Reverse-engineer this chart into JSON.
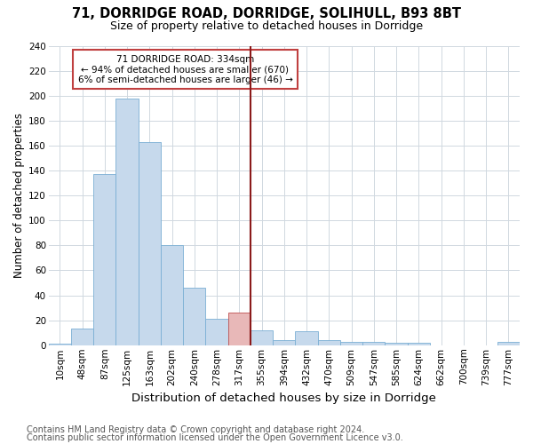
{
  "title1": "71, DORRIDGE ROAD, DORRIDGE, SOLIHULL, B93 8BT",
  "title2": "Size of property relative to detached houses in Dorridge",
  "xlabel": "Distribution of detached houses by size in Dorridge",
  "ylabel": "Number of detached properties",
  "categories": [
    "10sqm",
    "48sqm",
    "87sqm",
    "125sqm",
    "163sqm",
    "202sqm",
    "240sqm",
    "278sqm",
    "317sqm",
    "355sqm",
    "394sqm",
    "432sqm",
    "470sqm",
    "509sqm",
    "547sqm",
    "585sqm",
    "624sqm",
    "662sqm",
    "700sqm",
    "739sqm",
    "777sqm"
  ],
  "values": [
    1,
    13,
    137,
    198,
    163,
    80,
    46,
    21,
    26,
    12,
    4,
    11,
    4,
    3,
    3,
    2,
    2,
    0,
    0,
    0,
    3
  ],
  "bar_color": "#c6d9ec",
  "bar_edge_color": "#7aafd4",
  "highlight_bar_index": 8,
  "highlight_bar_color": "#e8b8b8",
  "highlight_bar_edge_color": "#c05050",
  "annotation_line1": "71 DORRIDGE ROAD: 334sqm",
  "annotation_line2": "← 94% of detached houses are smaller (670)",
  "annotation_line3": "6% of semi-detached houses are larger (46) →",
  "annotation_box_facecolor": "#ffffff",
  "annotation_box_edgecolor": "#c04040",
  "vline_color": "#8b1a1a",
  "ylim": [
    0,
    240
  ],
  "yticks": [
    0,
    20,
    40,
    60,
    80,
    100,
    120,
    140,
    160,
    180,
    200,
    220,
    240
  ],
  "footnote1": "Contains HM Land Registry data © Crown copyright and database right 2024.",
  "footnote2": "Contains public sector information licensed under the Open Government Licence v3.0.",
  "background_color": "#ffffff",
  "grid_color": "#d0d8e0",
  "title1_fontsize": 10.5,
  "title2_fontsize": 9,
  "xlabel_fontsize": 9.5,
  "ylabel_fontsize": 8.5,
  "tick_fontsize": 7.5,
  "annot_fontsize": 7.5,
  "footnote_fontsize": 7
}
